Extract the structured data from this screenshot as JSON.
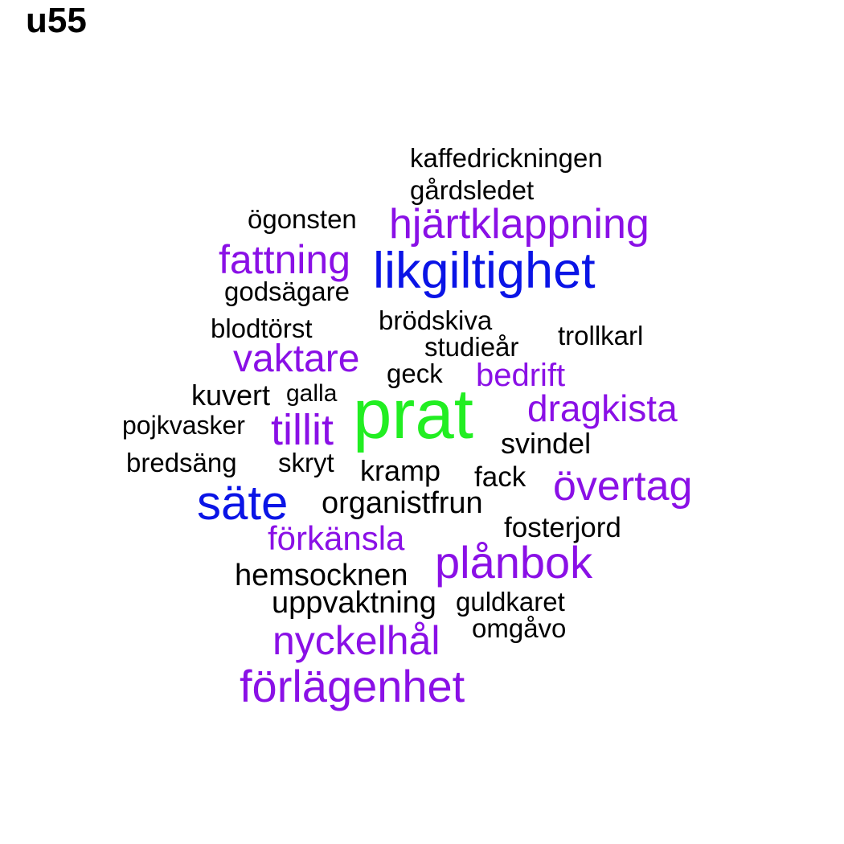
{
  "title": "u55",
  "colors": {
    "black": "#000000",
    "purple": "#8a10e6",
    "blue": "#0a14e6",
    "green": "#22ee22"
  },
  "words": [
    {
      "text": "kaffedrickningen",
      "color": "black"
    },
    {
      "text": "gårdsledet",
      "color": "black"
    },
    {
      "text": "ögonsten",
      "color": "black"
    },
    {
      "text": "hjärtklappning",
      "color": "purple"
    },
    {
      "text": "fattning",
      "color": "purple"
    },
    {
      "text": "likgiltighet",
      "color": "blue"
    },
    {
      "text": "godsägare",
      "color": "black"
    },
    {
      "text": "brödskiva",
      "color": "black"
    },
    {
      "text": "blodtörst",
      "color": "black"
    },
    {
      "text": "trollkarl",
      "color": "black"
    },
    {
      "text": "studieår",
      "color": "black"
    },
    {
      "text": "vaktare",
      "color": "purple"
    },
    {
      "text": "geck",
      "color": "black"
    },
    {
      "text": "bedrift",
      "color": "purple"
    },
    {
      "text": "kuvert",
      "color": "black"
    },
    {
      "text": "galla",
      "color": "black"
    },
    {
      "text": "prat",
      "color": "green"
    },
    {
      "text": "dragkista",
      "color": "purple"
    },
    {
      "text": "pojkvasker",
      "color": "black"
    },
    {
      "text": "tillit",
      "color": "purple"
    },
    {
      "text": "svindel",
      "color": "black"
    },
    {
      "text": "bredsäng",
      "color": "black"
    },
    {
      "text": "skryt",
      "color": "black"
    },
    {
      "text": "kramp",
      "color": "black"
    },
    {
      "text": "fack",
      "color": "black"
    },
    {
      "text": "övertag",
      "color": "purple"
    },
    {
      "text": "säte",
      "color": "blue"
    },
    {
      "text": "organistfrun",
      "color": "black"
    },
    {
      "text": "fosterjord",
      "color": "black"
    },
    {
      "text": "förkänsla",
      "color": "purple"
    },
    {
      "text": "plånbok",
      "color": "purple"
    },
    {
      "text": "hemsocknen",
      "color": "black"
    },
    {
      "text": "uppvaktning",
      "color": "black"
    },
    {
      "text": "guldkaret",
      "color": "black"
    },
    {
      "text": "omgåvo",
      "color": "black"
    },
    {
      "text": "nyckelhål",
      "color": "purple"
    },
    {
      "text": "förlägenhet",
      "color": "purple"
    }
  ]
}
